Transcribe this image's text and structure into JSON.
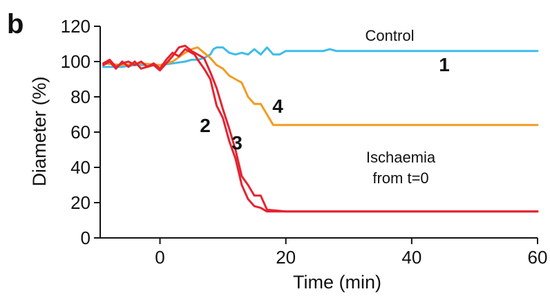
{
  "panel_label": "b",
  "chart_data": {
    "type": "line",
    "title": "",
    "xlabel": "Time (min)",
    "ylabel": "Diameter (%)",
    "xlim": [
      -9.5,
      60
    ],
    "ylim": [
      0,
      120
    ],
    "xticks": [
      0,
      20,
      40,
      60
    ],
    "yticks": [
      0,
      20,
      40,
      60,
      80,
      100,
      120
    ],
    "grid": false,
    "annotations": {
      "control": "Control",
      "ischaemia_line1": "Ischaemia",
      "ischaemia_line2": "from t=0"
    },
    "series": [
      {
        "name": "1",
        "color": "#3dbde9",
        "x": [
          -9,
          -6,
          -4,
          -2,
          0,
          2,
          4,
          5,
          6,
          7,
          8,
          8.5,
          9,
          10,
          11,
          12,
          13,
          14,
          15,
          16,
          17,
          18,
          19,
          20,
          22,
          24,
          26,
          27,
          28,
          30,
          35,
          40,
          45,
          50,
          55,
          60
        ],
        "y": [
          97,
          97,
          98,
          98,
          98,
          99,
          100,
          101,
          101,
          102,
          104,
          107,
          108,
          108,
          105,
          104,
          105,
          104,
          107,
          104,
          108,
          104,
          104,
          106,
          106,
          106,
          106,
          107,
          106,
          106,
          106,
          106,
          106,
          106,
          106,
          106
        ]
      },
      {
        "name": "4",
        "color": "#f39b21",
        "x": [
          -9,
          -6,
          -3,
          0,
          2,
          4,
          5,
          6,
          7,
          8,
          9,
          10,
          11,
          12,
          13,
          14,
          15,
          16,
          17,
          18,
          20,
          30,
          40,
          50,
          60
        ],
        "y": [
          99,
          98,
          99,
          98,
          100,
          105,
          107,
          108,
          105,
          102,
          98,
          96,
          92,
          90,
          88,
          80,
          76,
          76,
          70,
          64,
          64,
          64,
          64,
          64,
          64
        ]
      },
      {
        "name": "2",
        "color": "#e52330",
        "x": [
          -9,
          -8,
          -7,
          -6,
          -5,
          -4,
          -3,
          -2,
          -1,
          0,
          1,
          2,
          3,
          4,
          5,
          5.5,
          6,
          7,
          8,
          9,
          10,
          11,
          12,
          13,
          14,
          15,
          16,
          17,
          20,
          30,
          40,
          50,
          60
        ],
        "y": [
          98,
          100,
          96,
          100,
          97,
          100,
          96,
          97,
          99,
          96,
          101,
          105,
          103,
          107,
          105,
          104,
          101,
          96,
          90,
          75,
          68,
          55,
          45,
          30,
          22,
          18,
          17,
          15,
          15,
          15,
          15,
          15,
          15
        ]
      },
      {
        "name": "3",
        "color": "#e52330",
        "x": [
          -9,
          -8,
          -7,
          -6,
          -5,
          -4,
          -3,
          -2,
          -1,
          0,
          1,
          2,
          3,
          4,
          5,
          6,
          7,
          8,
          9,
          10,
          11,
          12,
          13,
          14,
          15,
          16,
          17,
          20,
          30,
          40,
          50,
          60
        ],
        "y": [
          99,
          101,
          97,
          99,
          100,
          98,
          100,
          97,
          98,
          95,
          99,
          103,
          108,
          109,
          106,
          104,
          102,
          94,
          85,
          73,
          62,
          50,
          35,
          30,
          24,
          24,
          16,
          15,
          15,
          15,
          15,
          15
        ]
      }
    ]
  }
}
